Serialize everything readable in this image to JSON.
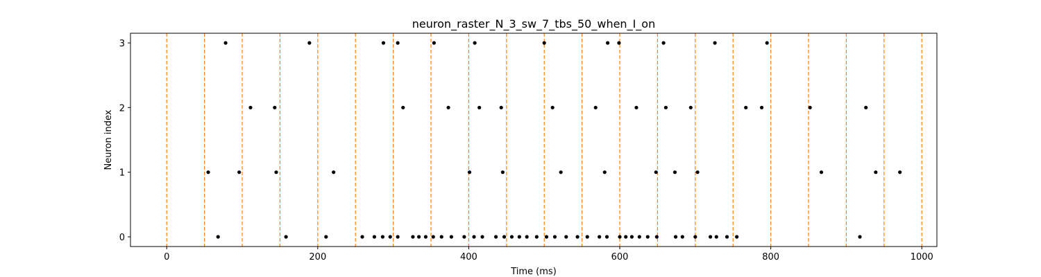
{
  "chart_data": {
    "type": "scatter",
    "title": "neuron_raster_N_3_sw_7_tbs_50_when_I_on",
    "xlabel": "Time (ms)",
    "ylabel": "Neuron index",
    "xlim": [
      -48,
      1020
    ],
    "ylim": [
      -0.15,
      3.15
    ],
    "xticks": [
      0,
      200,
      400,
      600,
      800,
      1000
    ],
    "yticks": [
      0,
      1,
      2,
      3
    ],
    "grid": false,
    "legend": "none",
    "marker_color": "#000000",
    "vline_color": "#ff7f0e",
    "vlines": [
      0,
      50,
      100,
      150,
      200,
      250,
      300,
      350,
      400,
      450,
      500,
      550,
      600,
      650,
      700,
      750,
      800,
      850,
      900,
      950,
      1000
    ],
    "spikes": [
      {
        "neuron": 3,
        "times": [
          78,
          189,
          287,
          306,
          354,
          408,
          500,
          584,
          599,
          658,
          726,
          795
        ]
      },
      {
        "neuron": 2,
        "times": [
          111,
          143,
          313,
          373,
          414,
          443,
          511,
          568,
          622,
          661,
          694,
          767,
          788,
          852,
          926
        ]
      },
      {
        "neuron": 1,
        "times": [
          55,
          96,
          145,
          221,
          401,
          445,
          522,
          580,
          648,
          673,
          703,
          867,
          939,
          971
        ]
      },
      {
        "neuron": 0,
        "times": [
          68,
          158,
          211,
          259,
          275,
          286,
          296,
          306,
          326,
          334,
          343,
          353,
          364,
          377,
          394,
          407,
          418,
          436,
          447,
          457,
          467,
          477,
          490,
          503,
          514,
          529,
          544,
          557,
          573,
          583,
          600,
          608,
          616,
          626,
          637,
          649,
          674,
          683,
          700,
          720,
          728,
          742,
          755,
          918
        ]
      }
    ]
  }
}
